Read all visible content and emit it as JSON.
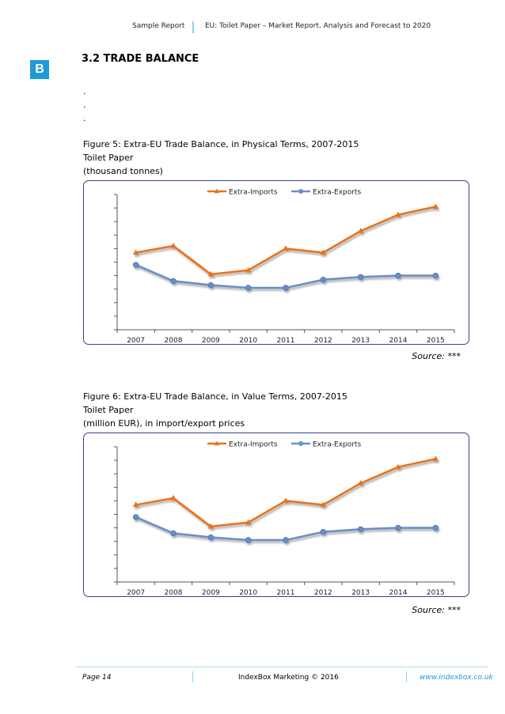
{
  "header": {
    "left": "Sample Report",
    "right": "EU: Toilet Paper – Market Report. Analysis and Forecast to 2020"
  },
  "logo": {
    "letter": "B"
  },
  "section": {
    "title": "3.2 TRADE BALANCE",
    "dots": [
      ".",
      ".",
      "."
    ]
  },
  "figure5": {
    "caption": "Figure 5: Extra-EU Trade Balance, in Physical Terms, 2007-2015",
    "subtitle": "Toilet Paper",
    "unit": "(thousand tonnes)",
    "source": "Source: ***"
  },
  "figure6": {
    "caption": "Figure 6: Extra-EU Trade Balance, in Value Terms, 2007-2015",
    "subtitle": "Toilet Paper",
    "unit": "(million EUR), in import/export prices",
    "source": "Source: ***"
  },
  "colors": {
    "imports": "#e8731f",
    "exports": "#6a8fc8",
    "frame": "#3b3f8f",
    "accent": "#1e9bd7"
  },
  "chart_data": [
    {
      "type": "line",
      "title": "",
      "categories": [
        "2007",
        "2008",
        "2009",
        "2010",
        "2011",
        "2012",
        "2013",
        "2014",
        "2015"
      ],
      "series": [
        {
          "name": "Extra-Imports",
          "values": [
            57,
            62,
            41,
            44,
            60,
            57,
            73,
            85,
            91
          ]
        },
        {
          "name": "Extra-Exports",
          "values": [
            48,
            36,
            33,
            31,
            31,
            37,
            39,
            40,
            40
          ]
        }
      ],
      "ylim": [
        0,
        100
      ],
      "legend": "top-center",
      "grid": false
    },
    {
      "type": "line",
      "title": "",
      "categories": [
        "2007",
        "2008",
        "2009",
        "2010",
        "2011",
        "2012",
        "2013",
        "2014",
        "2015"
      ],
      "series": [
        {
          "name": "Extra-Imports",
          "values": [
            57,
            62,
            41,
            44,
            60,
            57,
            73,
            85,
            91
          ]
        },
        {
          "name": "Extra-Exports",
          "values": [
            48,
            36,
            33,
            31,
            31,
            37,
            39,
            40,
            40
          ]
        }
      ],
      "ylim": [
        0,
        100
      ],
      "legend": "top-center",
      "grid": false
    }
  ],
  "footer": {
    "page": "Page 14",
    "center": "IndexBox Marketing © 2016",
    "url": "www.indexbox.co.uk"
  }
}
